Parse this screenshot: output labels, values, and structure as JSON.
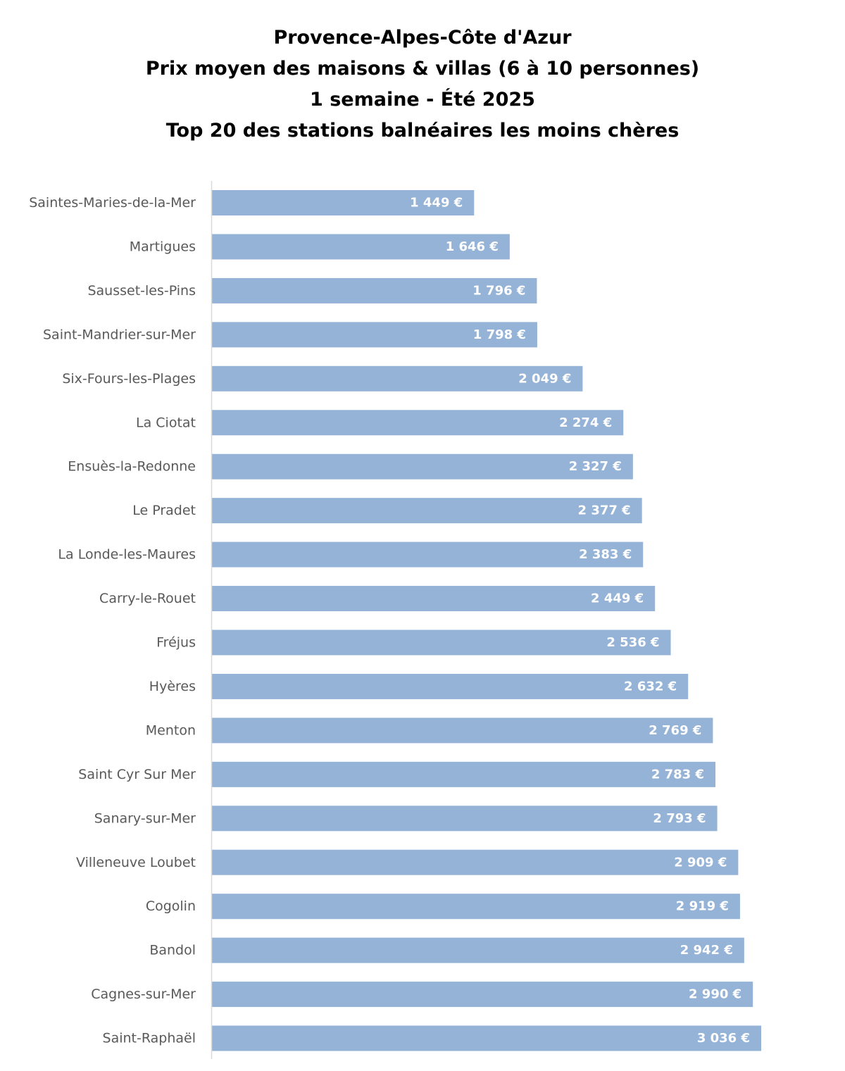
{
  "chart_data": {
    "type": "bar",
    "orientation": "horizontal",
    "title_lines": [
      "Provence-Alpes-Côte d'Azur",
      "Prix moyen des maisons & villas (6 à 10 personnes)",
      "1 semaine - Été 2025",
      "Top 20 des stations balnéaires les moins chères"
    ],
    "xlabel": "",
    "ylabel": "",
    "grid": false,
    "legend": "none",
    "bar_color": "#95B3D7",
    "axis_color": "#D9D9D9",
    "categories": [
      "Saintes-Maries-de-la-Mer",
      "Martigues",
      "Sausset-les-Pins",
      "Saint-Mandrier-sur-Mer",
      "Six-Fours-les-Plages",
      "La Ciotat",
      "Ensuès-la-Redonne",
      "Le Pradet",
      "La Londe-les-Maures",
      "Carry-le-Rouet",
      "Fréjus",
      "Hyères",
      "Menton",
      "Saint Cyr Sur Mer",
      "Sanary-sur-Mer",
      "Villeneuve Loubet",
      "Cogolin",
      "Bandol",
      "Cagnes-sur-Mer",
      "Saint-Raphaël"
    ],
    "values": [
      1449,
      1646,
      1796,
      1798,
      2049,
      2274,
      2327,
      2377,
      2383,
      2449,
      2536,
      2632,
      2769,
      2783,
      2793,
      2909,
      2919,
      2942,
      2990,
      3036
    ],
    "value_labels": [
      "1 449 €",
      "1 646 €",
      "1 796 €",
      "1 798 €",
      "2 049 €",
      "2 274 €",
      "2 327 €",
      "2 377 €",
      "2 383 €",
      "2 449 €",
      "2 536 €",
      "2 632 €",
      "2 769 €",
      "2 783 €",
      "2 793 €",
      "2 909 €",
      "2 919 €",
      "2 942 €",
      "2 990 €",
      "3 036 €"
    ],
    "xlim": [
      0,
      3036
    ]
  }
}
